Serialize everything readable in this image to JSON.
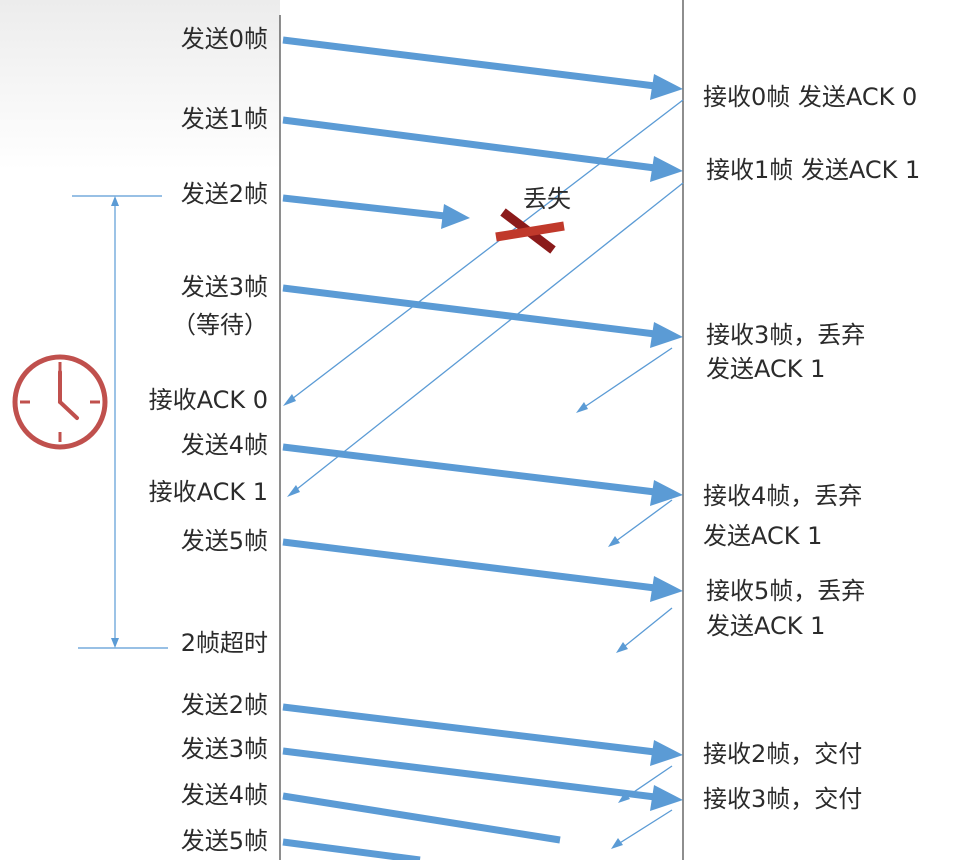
{
  "sender_labels": [
    {
      "text": "发送0帧"
    },
    {
      "text": "发送1帧"
    },
    {
      "text": "发送2帧"
    },
    {
      "text": "发送3帧"
    },
    {
      "text": "（等待）"
    },
    {
      "text": "接收ACK 0"
    },
    {
      "text": "发送4帧"
    },
    {
      "text": "接收ACK 1"
    },
    {
      "text": "发送5帧"
    },
    {
      "text": "2帧超时"
    },
    {
      "text": "发送2帧"
    },
    {
      "text": "发送3帧"
    },
    {
      "text": "发送4帧"
    },
    {
      "text": "发送5帧"
    }
  ],
  "receiver_labels": [
    {
      "text": "接收0帧 发送ACK 0"
    },
    {
      "text": "接收1帧 发送ACK 1"
    },
    {
      "text": "接收3帧，丢弃"
    },
    {
      "text": "发送ACK 1"
    },
    {
      "text": "接收4帧，丢弃"
    },
    {
      "text": "发送ACK 1"
    },
    {
      "text": "接收5帧，丢弃"
    },
    {
      "text": "发送ACK 1"
    },
    {
      "text": "接收2帧，交付"
    },
    {
      "text": "接收3帧，交付"
    }
  ],
  "lost": {
    "label": "丢失"
  },
  "colors": {
    "frame_arrow": "#5b9bd5",
    "ack_line": "#5b9bd5",
    "lost_mark": "#c0392b",
    "clock": "#c0504d"
  }
}
